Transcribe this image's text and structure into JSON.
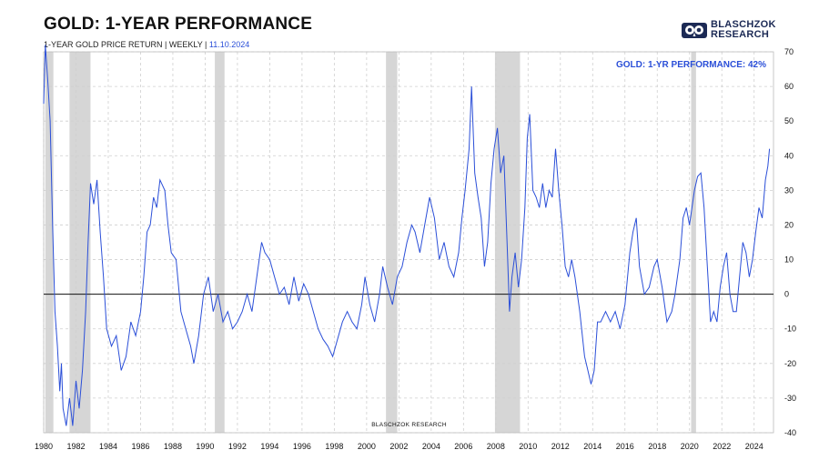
{
  "header": {
    "title": "GOLD: 1-YEAR PERFORMANCE",
    "subtitle": "1-YEAR GOLD PRICE RETURN | WEEKLY |",
    "date": "11.10.2024"
  },
  "logo": {
    "line1": "BLASCHZOK",
    "line2": "RESEARCH"
  },
  "colors": {
    "line": "#2b4fd8",
    "recession": "#d6d6d6",
    "grid": "#cfcfcf",
    "zero": "#111111"
  },
  "chart_data": {
    "type": "line",
    "annotation": "GOLD: 1-YR PERFORMANCE: 42%",
    "watermark": "BLASCHZOK    RESEARCH",
    "xlim": [
      1980,
      2025.2
    ],
    "ylim": [
      -40,
      70
    ],
    "x_ticks": [
      "1980",
      "1982",
      "1984",
      "1986",
      "1988",
      "1990",
      "1992",
      "1994",
      "1996",
      "1998",
      "2000",
      "2002",
      "2004",
      "2006",
      "2008",
      "2010",
      "2012",
      "2014",
      "2016",
      "2018",
      "2020",
      "2022",
      "2024"
    ],
    "y_ticks": [
      "70",
      "60",
      "50",
      "40",
      "30",
      "20",
      "10",
      "0",
      "-10",
      "-20",
      "-30",
      "-40"
    ],
    "grid": true,
    "recessions": [
      [
        1980.1,
        1980.6
      ],
      [
        1981.6,
        1982.9
      ],
      [
        1990.6,
        1991.2
      ],
      [
        2001.2,
        2001.9
      ],
      [
        2007.95,
        2009.5
      ],
      [
        2020.1,
        2020.4
      ]
    ],
    "series": [
      {
        "values": [
          [
            1980.0,
            55
          ],
          [
            1980.1,
            72
          ],
          [
            1980.25,
            62
          ],
          [
            1980.4,
            50
          ],
          [
            1980.55,
            20
          ],
          [
            1980.7,
            -5
          ],
          [
            1980.85,
            -15
          ],
          [
            1981.0,
            -28
          ],
          [
            1981.1,
            -20
          ],
          [
            1981.2,
            -33
          ],
          [
            1981.4,
            -38
          ],
          [
            1981.6,
            -30
          ],
          [
            1981.8,
            -38
          ],
          [
            1982.0,
            -25
          ],
          [
            1982.2,
            -33
          ],
          [
            1982.4,
            -22
          ],
          [
            1982.6,
            -5
          ],
          [
            1982.75,
            15
          ],
          [
            1982.9,
            32
          ],
          [
            1983.1,
            26
          ],
          [
            1983.3,
            33
          ],
          [
            1983.5,
            18
          ],
          [
            1983.7,
            5
          ],
          [
            1983.9,
            -10
          ],
          [
            1984.2,
            -15
          ],
          [
            1984.5,
            -12
          ],
          [
            1984.8,
            -22
          ],
          [
            1985.1,
            -18
          ],
          [
            1985.4,
            -8
          ],
          [
            1985.7,
            -12
          ],
          [
            1986.0,
            -5
          ],
          [
            1986.2,
            5
          ],
          [
            1986.4,
            18
          ],
          [
            1986.6,
            20
          ],
          [
            1986.8,
            28
          ],
          [
            1987.0,
            25
          ],
          [
            1987.2,
            33
          ],
          [
            1987.5,
            30
          ],
          [
            1987.7,
            20
          ],
          [
            1987.9,
            12
          ],
          [
            1988.2,
            10
          ],
          [
            1988.5,
            -5
          ],
          [
            1988.8,
            -10
          ],
          [
            1989.1,
            -15
          ],
          [
            1989.3,
            -20
          ],
          [
            1989.6,
            -12
          ],
          [
            1989.9,
            0
          ],
          [
            1990.2,
            5
          ],
          [
            1990.5,
            -5
          ],
          [
            1990.8,
            0
          ],
          [
            1991.1,
            -8
          ],
          [
            1991.4,
            -5
          ],
          [
            1991.7,
            -10
          ],
          [
            1992.0,
            -8
          ],
          [
            1992.3,
            -5
          ],
          [
            1992.6,
            0
          ],
          [
            1992.9,
            -5
          ],
          [
            1993.2,
            5
          ],
          [
            1993.5,
            15
          ],
          [
            1993.7,
            12
          ],
          [
            1994.0,
            10
          ],
          [
            1994.3,
            5
          ],
          [
            1994.6,
            0
          ],
          [
            1994.9,
            2
          ],
          [
            1995.2,
            -3
          ],
          [
            1995.5,
            5
          ],
          [
            1995.8,
            -2
          ],
          [
            1996.1,
            3
          ],
          [
            1996.4,
            0
          ],
          [
            1996.7,
            -5
          ],
          [
            1997.0,
            -10
          ],
          [
            1997.3,
            -13
          ],
          [
            1997.6,
            -15
          ],
          [
            1997.9,
            -18
          ],
          [
            1998.2,
            -13
          ],
          [
            1998.5,
            -8
          ],
          [
            1998.8,
            -5
          ],
          [
            1999.1,
            -8
          ],
          [
            1999.4,
            -10
          ],
          [
            1999.7,
            -3
          ],
          [
            1999.9,
            5
          ],
          [
            2000.2,
            -3
          ],
          [
            2000.5,
            -8
          ],
          [
            2000.8,
            0
          ],
          [
            2001.0,
            8
          ],
          [
            2001.3,
            2
          ],
          [
            2001.6,
            -3
          ],
          [
            2001.9,
            5
          ],
          [
            2002.2,
            8
          ],
          [
            2002.5,
            15
          ],
          [
            2002.8,
            20
          ],
          [
            2003.0,
            18
          ],
          [
            2003.3,
            12
          ],
          [
            2003.6,
            20
          ],
          [
            2003.9,
            28
          ],
          [
            2004.2,
            22
          ],
          [
            2004.5,
            10
          ],
          [
            2004.8,
            15
          ],
          [
            2005.1,
            8
          ],
          [
            2005.4,
            5
          ],
          [
            2005.7,
            12
          ],
          [
            2005.9,
            22
          ],
          [
            2006.1,
            30
          ],
          [
            2006.35,
            42
          ],
          [
            2006.5,
            60
          ],
          [
            2006.7,
            35
          ],
          [
            2006.9,
            28
          ],
          [
            2007.1,
            22
          ],
          [
            2007.3,
            8
          ],
          [
            2007.5,
            15
          ],
          [
            2007.7,
            32
          ],
          [
            2007.9,
            42
          ],
          [
            2008.1,
            48
          ],
          [
            2008.3,
            35
          ],
          [
            2008.5,
            40
          ],
          [
            2008.7,
            15
          ],
          [
            2008.85,
            -5
          ],
          [
            2009.0,
            5
          ],
          [
            2009.2,
            12
          ],
          [
            2009.4,
            2
          ],
          [
            2009.6,
            10
          ],
          [
            2009.8,
            25
          ],
          [
            2009.95,
            45
          ],
          [
            2010.1,
            52
          ],
          [
            2010.3,
            30
          ],
          [
            2010.5,
            28
          ],
          [
            2010.7,
            25
          ],
          [
            2010.9,
            32
          ],
          [
            2011.1,
            25
          ],
          [
            2011.3,
            30
          ],
          [
            2011.5,
            28
          ],
          [
            2011.7,
            42
          ],
          [
            2011.9,
            30
          ],
          [
            2012.1,
            20
          ],
          [
            2012.3,
            8
          ],
          [
            2012.5,
            5
          ],
          [
            2012.7,
            10
          ],
          [
            2012.9,
            5
          ],
          [
            2013.2,
            -5
          ],
          [
            2013.5,
            -18
          ],
          [
            2013.7,
            -22
          ],
          [
            2013.9,
            -26
          ],
          [
            2014.1,
            -22
          ],
          [
            2014.3,
            -8
          ],
          [
            2014.5,
            -8
          ],
          [
            2014.8,
            -5
          ],
          [
            2015.1,
            -8
          ],
          [
            2015.4,
            -5
          ],
          [
            2015.7,
            -10
          ],
          [
            2016.0,
            -3
          ],
          [
            2016.3,
            12
          ],
          [
            2016.5,
            18
          ],
          [
            2016.7,
            22
          ],
          [
            2016.9,
            8
          ],
          [
            2017.2,
            0
          ],
          [
            2017.5,
            2
          ],
          [
            2017.8,
            8
          ],
          [
            2018.0,
            10
          ],
          [
            2018.3,
            2
          ],
          [
            2018.6,
            -8
          ],
          [
            2018.9,
            -5
          ],
          [
            2019.1,
            0
          ],
          [
            2019.4,
            10
          ],
          [
            2019.6,
            22
          ],
          [
            2019.8,
            25
          ],
          [
            2020.0,
            20
          ],
          [
            2020.3,
            30
          ],
          [
            2020.5,
            34
          ],
          [
            2020.7,
            35
          ],
          [
            2020.9,
            25
          ],
          [
            2021.1,
            8
          ],
          [
            2021.3,
            -8
          ],
          [
            2021.5,
            -5
          ],
          [
            2021.7,
            -8
          ],
          [
            2021.9,
            2
          ],
          [
            2022.1,
            8
          ],
          [
            2022.3,
            12
          ],
          [
            2022.5,
            0
          ],
          [
            2022.7,
            -5
          ],
          [
            2022.9,
            -5
          ],
          [
            2023.1,
            5
          ],
          [
            2023.3,
            15
          ],
          [
            2023.5,
            12
          ],
          [
            2023.7,
            5
          ],
          [
            2023.9,
            10
          ],
          [
            2024.1,
            18
          ],
          [
            2024.3,
            25
          ],
          [
            2024.5,
            22
          ],
          [
            2024.7,
            33
          ],
          [
            2024.85,
            37
          ],
          [
            2024.95,
            42
          ]
        ]
      }
    ]
  }
}
